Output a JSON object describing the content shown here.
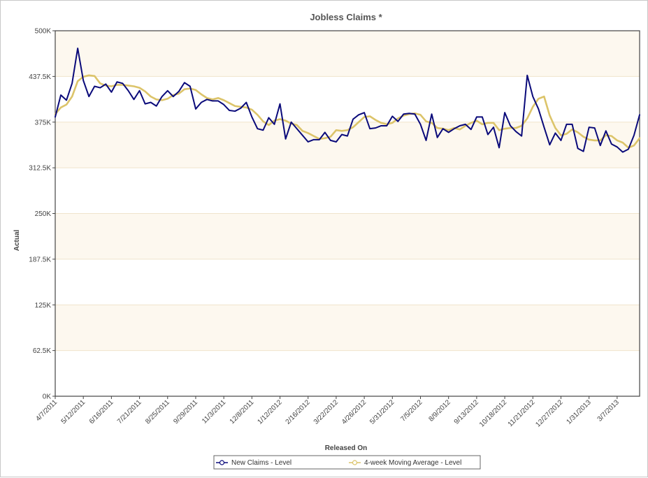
{
  "chart_data": {
    "type": "line",
    "title": "Jobless Claims *",
    "xlabel": "Released On",
    "ylabel": "Actual",
    "ylim": [
      0,
      500000
    ],
    "yticks": [
      0,
      62500,
      125000,
      187500,
      250000,
      312500,
      375000,
      437500,
      500000
    ],
    "ytick_labels": [
      "0K",
      "62.5K",
      "125K",
      "187.5K",
      "250K",
      "312.5K",
      "375K",
      "437.5K",
      "500K"
    ],
    "x_tick_labels": [
      "4/7/2011",
      "5/12/2011",
      "6/16/2011",
      "7/21/2011",
      "8/25/2011",
      "9/29/2011",
      "11/3/2011",
      "12/8/2011",
      "1/12/2012",
      "2/16/2012",
      "3/22/2012",
      "4/26/2012",
      "5/31/2012",
      "7/5/2012",
      "8/9/2012",
      "9/13/2012",
      "10/18/2012",
      "11/21/2012",
      "12/27/2012",
      "1/31/2013",
      "3/7/2013"
    ],
    "x_tick_every_weeks": 5,
    "grid": "horizontal bands",
    "legend_position": "bottom-center",
    "colors": {
      "new_claims": "#0a0a7a",
      "moving_average": "#dcc46a",
      "band_alt": "#fdf8ef",
      "grid_line": "#f0e4cc"
    },
    "series": [
      {
        "name": "New Claims - Level",
        "values": [
          382000,
          412000,
          405000,
          428000,
          476000,
          432000,
          410000,
          424000,
          422000,
          427000,
          416000,
          430000,
          428000,
          418000,
          406000,
          418000,
          400000,
          402000,
          397000,
          410000,
          418000,
          410000,
          417000,
          429000,
          424000,
          393000,
          402000,
          406000,
          404000,
          404000,
          399000,
          391000,
          390000,
          394000,
          402000,
          382000,
          366000,
          364000,
          381000,
          372000,
          400000,
          352000,
          375000,
          366000,
          357000,
          348000,
          351000,
          351000,
          361000,
          350000,
          348000,
          358000,
          356000,
          379000,
          385000,
          388000,
          366000,
          367000,
          370000,
          370000,
          383000,
          376000,
          386000,
          387000,
          386000,
          372000,
          350000,
          386000,
          354000,
          366000,
          361000,
          366000,
          370000,
          372000,
          365000,
          382000,
          382000,
          358000,
          368000,
          340000,
          388000,
          370000,
          362000,
          356000,
          439000,
          410000,
          393000,
          368000,
          344000,
          360000,
          350000,
          372000,
          372000,
          339000,
          335000,
          368000,
          367000,
          343000,
          363000,
          345000,
          341000,
          334000,
          338000,
          357000,
          385000
        ]
      },
      {
        "name": "4-week Moving Average - Level",
        "values": [
          386000,
          395000,
          399000,
          410000,
          431000,
          437000,
          439000,
          438000,
          428000,
          425000,
          424000,
          426000,
          426000,
          425000,
          424000,
          422000,
          417000,
          410000,
          406000,
          405000,
          407000,
          412000,
          414000,
          420000,
          421000,
          419000,
          413000,
          408000,
          406000,
          408000,
          405000,
          401000,
          397000,
          396000,
          395000,
          392000,
          385000,
          376000,
          371000,
          377000,
          379000,
          377000,
          373000,
          371000,
          363000,
          360000,
          356000,
          352000,
          353000,
          355000,
          364000,
          363000,
          364000,
          368000,
          375000,
          382000,
          383000,
          378000,
          374000,
          372000,
          374000,
          380000,
          384000,
          386000,
          387000,
          385000,
          376000,
          374000,
          367000,
          366000,
          364000,
          367000,
          365000,
          370000,
          374000,
          377000,
          372000,
          374000,
          374000,
          364000,
          366000,
          367000,
          367000,
          370000,
          380000,
          396000,
          407000,
          410000,
          384000,
          367000,
          357000,
          359000,
          365000,
          361000,
          355000,
          351000,
          350000,
          350000,
          357000,
          356000,
          350000,
          347000,
          340000,
          343000,
          353000
        ]
      }
    ]
  }
}
